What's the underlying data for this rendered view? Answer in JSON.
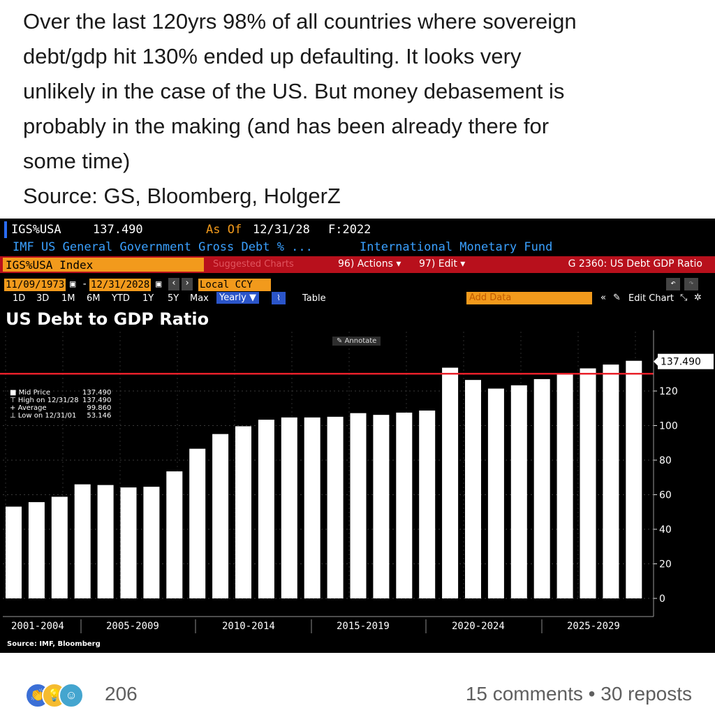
{
  "post": {
    "lines": [
      "Over the last 120yrs 98% of all countries where sovereign",
      "debt/gdp hit 130% ended up defaulting. It looks very",
      "unlikely in the case of the US. But money debasement is",
      "probably in the making (and has been already there for",
      "some time)",
      "Source: GS, Bloomberg, HolgerZ"
    ]
  },
  "terminal": {
    "ticker": "IGS%USA",
    "price": "137.490",
    "as_of_label": "As Of",
    "as_of_date": "12/31/28",
    "freq": "F:2022",
    "description": "IMF US General Government Gross Debt % ...",
    "source_name": "International Monetary Fund",
    "index_label": "IGS%USA Index",
    "suggested_charts": "Suggested Charts",
    "actions_label": "96) Actions ▾",
    "edit_label": "97) Edit ▾",
    "chart_id": "G 2360: US Debt GDP Ratio",
    "start_date": "11/09/1973",
    "end_date": "12/31/2028",
    "currency": "Local CCY",
    "ranges": [
      "1D",
      "3D",
      "1M",
      "6M",
      "YTD",
      "1Y",
      "5Y",
      "Max"
    ],
    "period": "Yearly ▼",
    "table_label": "Table",
    "add_data": "Add Data",
    "edit_chart": "Edit Chart",
    "annotate": "Annotate",
    "chart_title": "US Debt to GDP Ratio",
    "source_note": "Source: IMF, Bloomberg",
    "stats": {
      "mid_label": "Mid Price",
      "mid_value": "137.490",
      "high_label": "High on 12/31/28",
      "high_value": "137.490",
      "avg_label": "Average",
      "avg_value": "99.860",
      "low_label": "Low on 12/31/01",
      "low_value": "53.146"
    },
    "last_value_label": "137.490"
  },
  "chart_data": {
    "type": "bar",
    "title": "US Debt to GDP Ratio",
    "categories": [
      "2001",
      "2002",
      "2003",
      "2004",
      "2005",
      "2006",
      "2007",
      "2008",
      "2009",
      "2010",
      "2011",
      "2012",
      "2013",
      "2014",
      "2015",
      "2016",
      "2017",
      "2018",
      "2019",
      "2020",
      "2021",
      "2022",
      "2023",
      "2024",
      "2025",
      "2026",
      "2027",
      "2028"
    ],
    "values": [
      53.1,
      55.7,
      58.8,
      66.0,
      65.6,
      64.2,
      64.6,
      73.5,
      86.6,
      95.1,
      99.6,
      103.4,
      104.7,
      104.7,
      105.1,
      107.2,
      106.2,
      107.5,
      108.7,
      133.5,
      126.4,
      121.4,
      123.3,
      126.9,
      129.7,
      133.1,
      135.3,
      137.49
    ],
    "period_labels": [
      "2001-2004",
      "2005-2009",
      "2010-2014",
      "2015-2019",
      "2020-2024",
      "2025-2029"
    ],
    "ylim": [
      0,
      140
    ],
    "yticks": [
      0,
      20,
      40,
      60,
      80,
      100,
      120
    ],
    "threshold": 130,
    "bar_color": "#ffffff",
    "threshold_color": "#e8202a",
    "grid": true
  },
  "footer": {
    "reaction_icons": [
      "clap-icon",
      "idea-icon",
      "laugh-icon"
    ],
    "reaction_count": "206",
    "stats": "15 comments • 30 reposts"
  }
}
